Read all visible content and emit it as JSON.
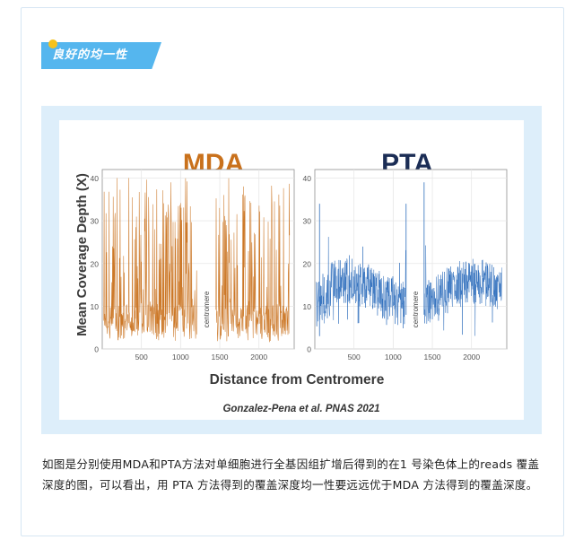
{
  "section_tag": "良好的均一性",
  "caption": "如图是分别使用MDA和PTA方法对单细胞进行全基因组扩增后得到的在1 号染色体上的reads 覆盖深度的图，可以看出，用 PTA 方法得到的覆盖深度均一性要远远优于MDA 方法得到的覆盖深度。",
  "colors": {
    "tag_bg": "#55b6ee",
    "tag_dot": "#f6c21c",
    "frame_bg": "#ddeefa",
    "mda": "#c9711c",
    "pta": "#2f6fbd",
    "mda_title": "#c9711c",
    "pta_title": "#1b2d55"
  },
  "chart_data": [
    {
      "type": "line",
      "title": "MDA",
      "xlabel": "Distance from Centromere",
      "ylabel": "Mean Coverage Depth (X)",
      "xlim": [
        0,
        2450
      ],
      "ylim": [
        0,
        42
      ],
      "xticks": [
        "500",
        "1000",
        "1500",
        "2000"
      ],
      "yticks": [
        "0",
        "10",
        "20",
        "30",
        "40"
      ],
      "gap_label": "centromere",
      "gap_range": [
        1230,
        1430
      ],
      "description_of_signal": "highly spiky coverage, values mostly 1-40X",
      "series": [
        {
          "name": "",
          "color": "#c9711c"
        }
      ]
    },
    {
      "type": "line",
      "title": "PTA",
      "xlabel": "Distance from Centromere",
      "ylabel": "Mean Coverage Depth (X)",
      "xlim": [
        0,
        2450
      ],
      "ylim": [
        0,
        42
      ],
      "xticks": [
        "500",
        "1000",
        "1500",
        "2000"
      ],
      "yticks": [
        "0",
        "10",
        "20",
        "30",
        "40"
      ],
      "gap_label": "centromere",
      "gap_range": [
        1180,
        1380
      ],
      "series": [
        {
          "name": "",
          "color": "#2f6fbd"
        }
      ]
    }
  ],
  "shared_xlabel": "Distance from Centromere",
  "citation": "Gonzalez-Pena et al. PNAS 2021"
}
